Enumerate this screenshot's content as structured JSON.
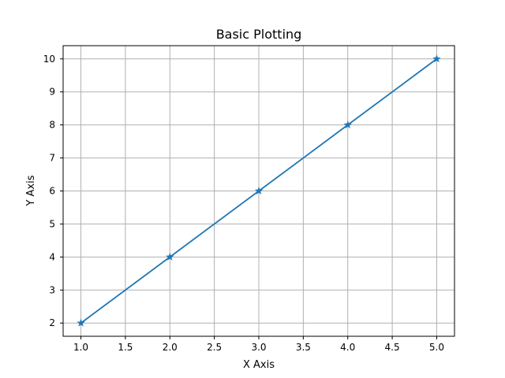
{
  "chart_data": {
    "type": "line",
    "title": "Basic Plotting",
    "xlabel": "X Axis",
    "ylabel": "Y Axis",
    "x": [
      1.0,
      2.0,
      3.0,
      4.0,
      5.0
    ],
    "series": [
      {
        "values": [
          2,
          4,
          6,
          8,
          10
        ],
        "marker": "star"
      }
    ],
    "xlim": [
      0.8,
      5.2
    ],
    "ylim": [
      1.6,
      10.4
    ],
    "xticks": [
      "1.0",
      "1.5",
      "2.0",
      "2.5",
      "3.0",
      "3.5",
      "4.0",
      "4.5",
      "5.0"
    ],
    "yticks": [
      "2",
      "3",
      "4",
      "5",
      "6",
      "7",
      "8",
      "9",
      "10"
    ],
    "grid": true,
    "colors": {
      "series": "#1f77b4",
      "grid": "#b0b0b0"
    }
  }
}
